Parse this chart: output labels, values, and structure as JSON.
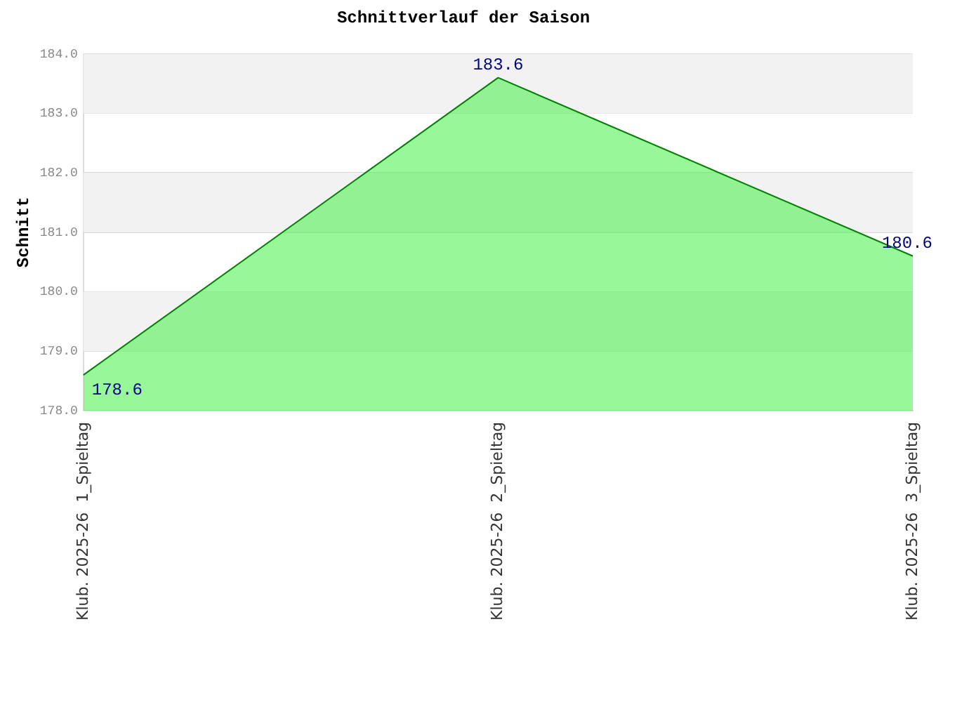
{
  "chart_data": {
    "type": "area",
    "title": "Schnittverlauf der Saison",
    "ylabel": "Schnitt",
    "categories": [
      "Klub. 2025-26  1_Spieltag",
      "Klub. 2025-26  2_Spieltag",
      "Klub. 2025-26  3_Spieltag"
    ],
    "series": [
      {
        "color": "#008000",
        "values": [
          178.6,
          183.6,
          180.6
        ]
      }
    ],
    "ylim": [
      178,
      184
    ],
    "yticks": [
      {
        "value": 178,
        "label": "178.0"
      },
      {
        "value": 179,
        "label": "179.0"
      },
      {
        "value": 180,
        "label": "180.0"
      },
      {
        "value": 181,
        "label": "181.0"
      },
      {
        "value": 182,
        "label": "182.0"
      },
      {
        "value": 183,
        "label": "183.0"
      },
      {
        "value": 184,
        "label": "184.0"
      }
    ],
    "grid": "y",
    "data_labels": true,
    "legend": false
  }
}
